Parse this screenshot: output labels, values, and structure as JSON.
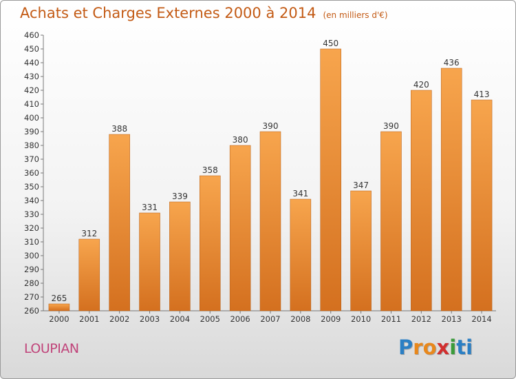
{
  "header": {
    "title": "Achats et Charges Externes 2000 à 2014",
    "subtitle": "(en milliers d'€)"
  },
  "footer": {
    "place": "LOUPIAN",
    "logo_letters": [
      "P",
      "r",
      "o",
      "x",
      "i",
      "t",
      "i"
    ]
  },
  "colors": {
    "bar_light": "#f7a54d",
    "bar_dark": "#d4701f",
    "bar_edge": "#b35a12",
    "title": "#c35a14",
    "place": "#c0447a",
    "logo": [
      "#2b7fc4",
      "#e8881c",
      "#e8881c",
      "#d12f2f",
      "#3a9b3a",
      "#2b7fc4",
      "#2b7fc4"
    ]
  },
  "chart_data": {
    "type": "bar",
    "title": "Achats et Charges Externes 2000 à 2014",
    "categories": [
      "2000",
      "2001",
      "2002",
      "2003",
      "2004",
      "2005",
      "2006",
      "2007",
      "2008",
      "2009",
      "2010",
      "2011",
      "2012",
      "2013",
      "2014"
    ],
    "values": [
      265,
      312,
      388,
      331,
      339,
      358,
      380,
      390,
      341,
      450,
      347,
      390,
      420,
      436,
      413
    ],
    "ylim": [
      260,
      460
    ],
    "ytick_step": 10,
    "grid": false,
    "xlabel": "",
    "ylabel": ""
  }
}
